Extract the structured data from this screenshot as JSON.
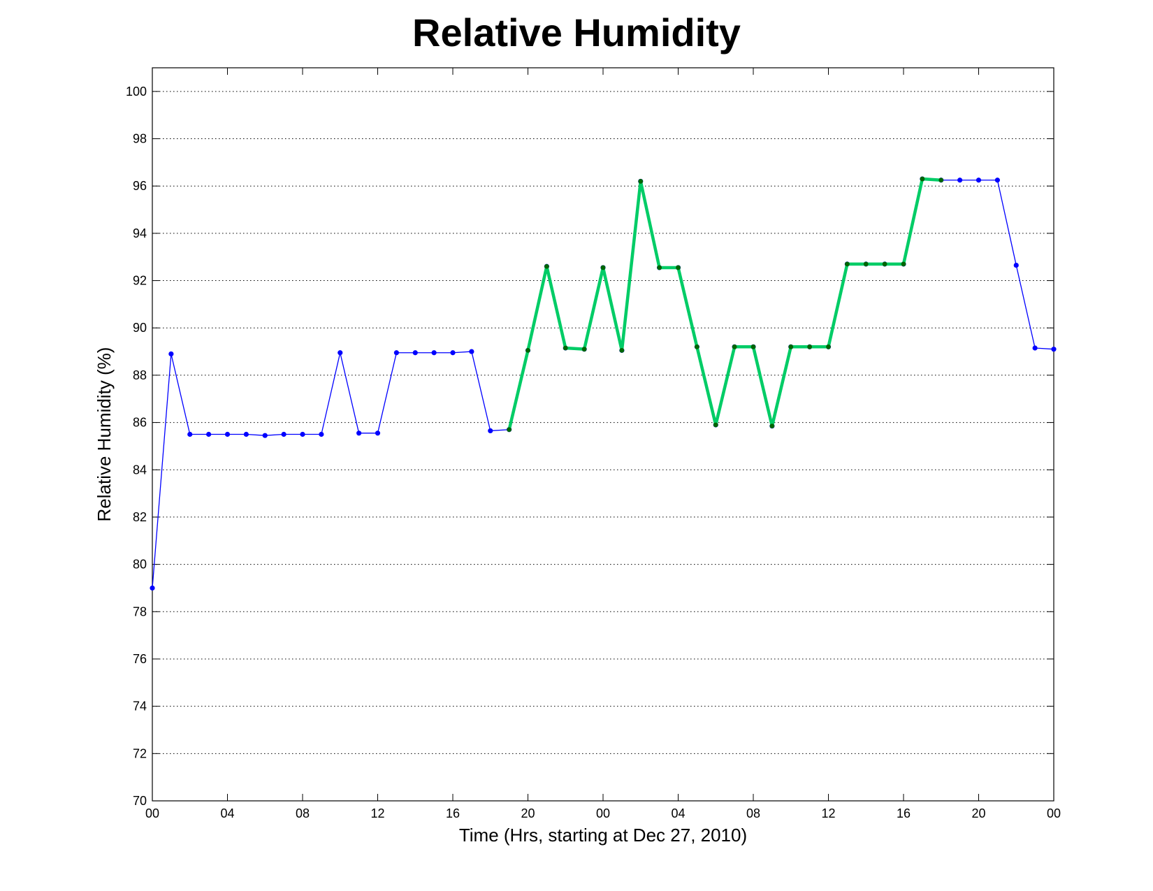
{
  "chart_data": {
    "type": "line",
    "title": "Relative Humidity",
    "xlabel": "Time (Hrs, starting at Dec 27, 2010)",
    "ylabel": "Relative Humidity (%)",
    "ylim": [
      70,
      101
    ],
    "yticks": [
      70,
      72,
      74,
      76,
      78,
      80,
      82,
      84,
      86,
      88,
      90,
      92,
      94,
      96,
      98,
      100
    ],
    "xlim": [
      0,
      48
    ],
    "xtick_hours": [
      0,
      4,
      8,
      12,
      16,
      20,
      24,
      28,
      32,
      36,
      40,
      44,
      48
    ],
    "xtick_labels": [
      "00",
      "04",
      "08",
      "12",
      "16",
      "20",
      "00",
      "04",
      "08",
      "12",
      "16",
      "20",
      "00"
    ],
    "grid": true,
    "series": [
      {
        "color": "#0000ff",
        "x": [
          0,
          1,
          2,
          3,
          4,
          5,
          6,
          7,
          8,
          9,
          10,
          11,
          12,
          13,
          14,
          15,
          16,
          17,
          18,
          19,
          20,
          21,
          22,
          23,
          24,
          25,
          26,
          27,
          28,
          29,
          30,
          31,
          32,
          33,
          34,
          35,
          36,
          37,
          38,
          39,
          40,
          41,
          42,
          43,
          44,
          45,
          46,
          47,
          48
        ],
        "y": [
          79.0,
          88.9,
          85.5,
          85.5,
          85.5,
          85.5,
          85.45,
          85.5,
          85.5,
          85.5,
          88.95,
          85.55,
          85.55,
          88.95,
          88.95,
          88.95,
          88.95,
          89.0,
          85.65,
          85.7,
          89.05,
          92.6,
          89.15,
          89.1,
          92.55,
          89.05,
          96.2,
          92.55,
          92.55,
          89.2,
          85.9,
          89.2,
          89.2,
          85.85,
          89.2,
          89.2,
          89.2,
          92.7,
          92.7,
          92.7,
          92.7,
          96.3,
          96.25,
          96.25,
          96.25,
          96.25,
          92.65,
          89.15,
          89.1
        ]
      },
      {
        "color": "#00cc66",
        "marker_color": "#006600",
        "x": [
          19,
          20,
          21,
          22,
          23,
          24,
          25,
          26,
          27,
          28,
          29,
          30,
          31,
          32,
          33,
          34,
          35,
          36,
          37,
          38,
          39,
          40,
          41,
          42
        ],
        "y": [
          85.7,
          89.05,
          92.6,
          89.15,
          89.1,
          92.55,
          89.05,
          96.2,
          92.55,
          92.55,
          89.2,
          85.9,
          89.2,
          89.2,
          85.85,
          89.2,
          89.2,
          89.2,
          92.7,
          92.7,
          92.7,
          92.7,
          96.3,
          96.25
        ]
      }
    ]
  }
}
